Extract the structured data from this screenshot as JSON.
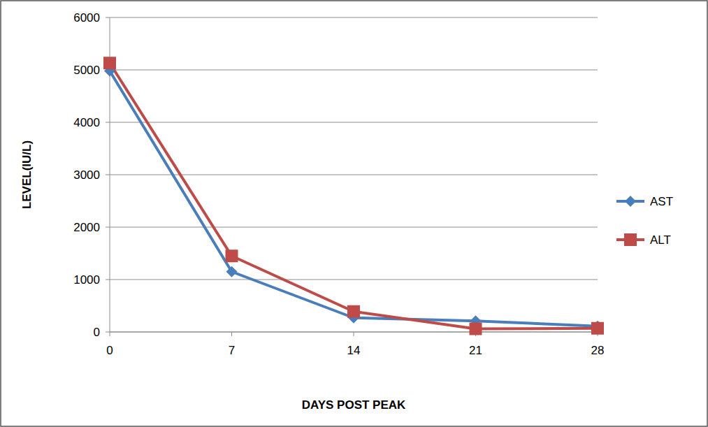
{
  "chart_data": {
    "type": "line",
    "x_label": "DAYS POST PEAK",
    "y_label": "LEVEL(IU/L)",
    "x": [
      0,
      7,
      14,
      21,
      28
    ],
    "series": [
      {
        "name": "AST",
        "color": "#4a7ebb",
        "marker": "diamond",
        "values": [
          4980,
          1150,
          270,
          210,
          110
        ]
      },
      {
        "name": "ALT",
        "color": "#be4b48",
        "marker": "square",
        "values": [
          5130,
          1450,
          390,
          60,
          70
        ]
      }
    ],
    "xlim": [
      0,
      28
    ],
    "xticks": [
      0,
      7,
      14,
      21,
      28
    ],
    "ylim": [
      0,
      6000
    ],
    "yticks": [
      0,
      1000,
      2000,
      3000,
      4000,
      5000,
      6000
    ],
    "grid": true,
    "legend": "right"
  }
}
